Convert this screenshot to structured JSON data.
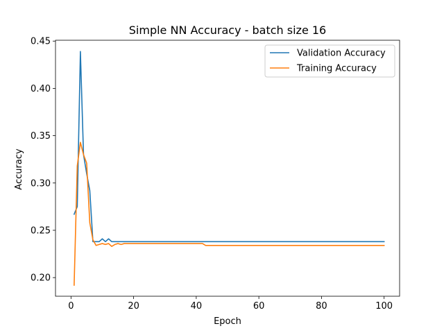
{
  "chart_data": {
    "type": "line",
    "title": "Simple NN Accuracy - batch size 16",
    "xlabel": "Epoch",
    "ylabel": "Accuracy",
    "xlim": [
      -4.95,
      104.95
    ],
    "ylim": [
      0.1803,
      0.4509
    ],
    "x_ticks": [
      0,
      20,
      40,
      60,
      80,
      100
    ],
    "y_ticks": [
      0.2,
      0.25,
      0.3,
      0.35,
      0.4,
      0.45
    ],
    "y_tick_labels": [
      "0.20",
      "0.25",
      "0.30",
      "0.35",
      "0.40",
      "0.45"
    ],
    "grid": false,
    "legend_position": "upper right",
    "series": [
      {
        "name": "Validation Accuracy",
        "color": "#1f77b4",
        "points": [
          [
            1,
            0.267
          ],
          [
            2,
            0.275
          ],
          [
            3,
            0.439
          ],
          [
            4,
            0.33
          ],
          [
            5,
            0.31
          ],
          [
            6,
            0.292
          ],
          [
            7,
            0.238
          ],
          [
            8,
            0.238
          ],
          [
            9,
            0.238
          ],
          [
            10,
            0.241
          ],
          [
            11,
            0.238
          ],
          [
            12,
            0.241
          ],
          [
            13,
            0.238
          ],
          [
            14,
            0.238
          ],
          [
            15,
            0.238
          ],
          [
            100,
            0.238
          ]
        ]
      },
      {
        "name": "Training Accuracy",
        "color": "#ff7f0e",
        "points": [
          [
            1,
            0.192
          ],
          [
            2,
            0.318
          ],
          [
            3,
            0.343
          ],
          [
            4,
            0.33
          ],
          [
            5,
            0.321
          ],
          [
            6,
            0.258
          ],
          [
            7,
            0.24
          ],
          [
            8,
            0.234
          ],
          [
            9,
            0.235
          ],
          [
            10,
            0.236
          ],
          [
            11,
            0.235
          ],
          [
            12,
            0.236
          ],
          [
            13,
            0.233
          ],
          [
            14,
            0.235
          ],
          [
            15,
            0.236
          ],
          [
            16,
            0.235
          ],
          [
            17,
            0.236
          ],
          [
            42,
            0.236
          ],
          [
            43,
            0.234
          ],
          [
            100,
            0.234
          ]
        ]
      }
    ]
  }
}
